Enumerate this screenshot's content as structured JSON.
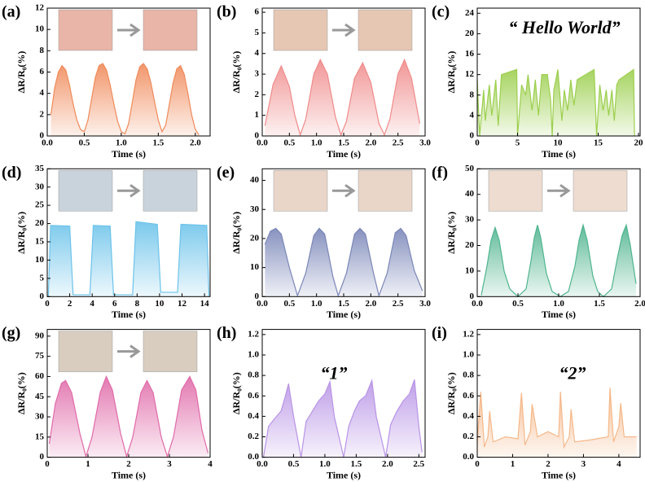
{
  "chart_data": [
    {
      "type": "area",
      "label": "(a)",
      "xlabel": "Time (s)",
      "ylabel": "ΔR/R₀(%)",
      "color": "#f08a5a",
      "xlim": [
        0,
        2.2
      ],
      "xticks": [
        {
          "value": 0,
          "label": "0.0"
        },
        0.5,
        {
          "value": 1,
          "label": "1.0"
        },
        1.5,
        {
          "value": 2,
          "label": "2.0"
        }
      ],
      "ylim": [
        0,
        12
      ],
      "yticks": [
        0,
        2,
        4,
        6,
        8,
        10,
        12
      ],
      "x": [
        0.05,
        0.1,
        0.15,
        0.2,
        0.25,
        0.3,
        0.35,
        0.4,
        0.45,
        0.5,
        0.55,
        0.6,
        0.65,
        0.7,
        0.75,
        0.8,
        0.85,
        0.9,
        0.95,
        1.0,
        1.05,
        1.1,
        1.15,
        1.2,
        1.25,
        1.3,
        1.35,
        1.4,
        1.45,
        1.5,
        1.55,
        1.6,
        1.65,
        1.7,
        1.75,
        1.8,
        1.85,
        1.9,
        1.95,
        2.0,
        2.05
      ],
      "values": [
        2.0,
        4.5,
        6.0,
        6.6,
        6.2,
        4.8,
        3.0,
        1.5,
        0.6,
        0.4,
        1.5,
        3.5,
        5.5,
        6.6,
        6.8,
        6.2,
        4.8,
        3.0,
        1.4,
        0.4,
        0.2,
        1.2,
        3.2,
        5.3,
        6.5,
        6.8,
        6.3,
        5.0,
        3.2,
        1.5,
        0.4,
        1.0,
        3.0,
        5.0,
        6.3,
        6.6,
        5.8,
        4.0,
        2.0,
        0.6,
        0.1
      ]
    },
    {
      "type": "area",
      "label": "(b)",
      "xlabel": "Time (s)",
      "ylabel": "ΔR/R₀(%)",
      "color": "#f08a8a",
      "xlim": [
        0,
        3
      ],
      "xticks": [
        {
          "value": 0,
          "label": "0.0"
        },
        0.5,
        {
          "value": 1,
          "label": "1.0"
        },
        1.5,
        {
          "value": 2,
          "label": "2.0"
        },
        2.5,
        {
          "value": 3,
          "label": "3.0"
        }
      ],
      "ylim": [
        0,
        6.2
      ],
      "yticks": [
        0,
        1,
        2,
        3,
        4,
        5,
        6
      ],
      "x": [
        0.05,
        0.2,
        0.35,
        0.5,
        0.6,
        0.7,
        0.8,
        0.95,
        1.07,
        1.2,
        1.35,
        1.45,
        1.55,
        1.7,
        1.85,
        2.0,
        2.15,
        2.25,
        2.35,
        2.5,
        2.62,
        2.75,
        2.9
      ],
      "values": [
        0.5,
        2.5,
        3.4,
        2.4,
        1.0,
        0.05,
        0.8,
        3.0,
        3.7,
        3.0,
        0.9,
        0.05,
        0.7,
        2.8,
        3.55,
        2.6,
        0.6,
        0.05,
        0.8,
        3.0,
        3.7,
        2.8,
        0.6
      ]
    },
    {
      "type": "area",
      "label": "(c)",
      "title": "“ Hello World”",
      "xlabel": "Time (s)",
      "ylabel": "ΔR/R₀(%)",
      "color": "#9ccf4e",
      "xlim": [
        0,
        20.2
      ],
      "xticks": [
        0,
        5,
        10,
        15,
        20
      ],
      "ylim": [
        0,
        25
      ],
      "yticks": [
        0,
        4,
        8,
        12,
        16,
        20,
        24
      ],
      "x": [
        0,
        0.3,
        0.8,
        1.0,
        1.5,
        1.8,
        2.3,
        2.6,
        3.0,
        4.9,
        5.0,
        5.5,
        6.0,
        6.3,
        6.8,
        7.2,
        7.6,
        8.0,
        8.7,
        9.1,
        9.3,
        9.5,
        10.0,
        10.5,
        10.8,
        11.2,
        11.6,
        12.0,
        12.4,
        14.5,
        14.8,
        15.2,
        15.6,
        16.0,
        16.3,
        16.7,
        17.0,
        17.3,
        17.6,
        19.4,
        19.5
      ],
      "values": [
        11,
        0,
        9,
        3,
        10,
        4,
        11,
        2,
        12,
        13,
        0,
        10,
        8,
        12,
        5,
        11,
        4,
        12,
        12,
        7,
        0,
        9,
        13,
        3,
        9,
        5,
        11,
        6,
        11,
        13,
        0,
        10,
        5,
        9,
        4,
        9,
        3,
        10,
        11,
        13,
        0
      ]
    },
    {
      "type": "area",
      "label": "(d)",
      "xlabel": "Time (s)",
      "ylabel": "ΔR/R₀(%)",
      "color": "#6cc3ea",
      "xlim": [
        0,
        14.5
      ],
      "xticks": [
        0,
        2,
        4,
        6,
        8,
        10,
        12,
        14
      ],
      "ylim": [
        0,
        35
      ],
      "yticks": [
        0,
        5,
        10,
        15,
        20,
        25,
        30,
        35
      ],
      "x": [
        0.1,
        0.3,
        2.0,
        2.3,
        3.8,
        4.1,
        5.6,
        5.9,
        7.6,
        7.9,
        9.8,
        10.1,
        11.6,
        11.9,
        14.2,
        14.4
      ],
      "values": [
        0,
        19.5,
        19.3,
        0.5,
        0.5,
        19.5,
        19.3,
        0.5,
        0.5,
        20.5,
        19.8,
        1.2,
        1.2,
        19.8,
        19.5,
        0
      ]
    },
    {
      "type": "area",
      "label": "(e)",
      "xlabel": "Time (s)",
      "ylabel": "ΔR/R₀(%)",
      "color": "#7a86b8",
      "xlim": [
        0,
        3
      ],
      "xticks": [
        {
          "value": 0,
          "label": "0.0"
        },
        0.5,
        {
          "value": 1,
          "label": "1.0"
        },
        1.5,
        {
          "value": 2,
          "label": "2.0"
        },
        2.5,
        {
          "value": 3,
          "label": "3.0"
        }
      ],
      "ylim": [
        0,
        44
      ],
      "yticks": [
        0,
        10,
        20,
        30,
        40
      ],
      "x": [
        0.05,
        0.15,
        0.25,
        0.35,
        0.5,
        0.65,
        0.8,
        0.95,
        1.05,
        1.15,
        1.3,
        1.4,
        1.55,
        1.7,
        1.8,
        1.9,
        2.05,
        2.15,
        2.3,
        2.45,
        2.55,
        2.65,
        2.8,
        2.95
      ],
      "values": [
        18,
        22.5,
        23.5,
        21.5,
        10,
        0.3,
        8,
        21,
        23.5,
        21.5,
        7,
        0.3,
        8,
        21.5,
        23.5,
        21.5,
        8,
        0.3,
        8,
        22,
        23.5,
        21,
        9,
        2
      ]
    },
    {
      "type": "area",
      "label": "(f)",
      "xlabel": "Time (s)",
      "ylabel": "ΔR/R₀(%)",
      "color": "#4fb48e",
      "xlim": [
        0,
        2
      ],
      "xticks": [
        {
          "value": 0,
          "label": "0.0"
        },
        0.5,
        {
          "value": 1,
          "label": "1.0"
        },
        1.5,
        {
          "value": 2,
          "label": "2.0"
        }
      ],
      "ylim": [
        0,
        50
      ],
      "yticks": [
        0,
        10,
        20,
        30,
        40,
        50
      ],
      "x": [
        0.05,
        0.12,
        0.17,
        0.22,
        0.27,
        0.33,
        0.4,
        0.5,
        0.6,
        0.66,
        0.7,
        0.74,
        0.78,
        0.85,
        0.92,
        1.02,
        1.12,
        1.2,
        1.25,
        1.3,
        1.35,
        1.42,
        1.48,
        1.55,
        1.65,
        1.72,
        1.78,
        1.83,
        1.88,
        1.95
      ],
      "values": [
        0.5,
        12,
        22,
        27,
        22,
        10,
        3,
        0,
        3,
        14,
        23,
        28,
        23,
        9,
        2,
        0,
        2,
        12,
        22,
        28,
        22,
        8,
        2,
        0,
        3,
        15,
        24,
        28,
        20,
        5
      ]
    },
    {
      "type": "area",
      "label": "(g)",
      "xlabel": "Time (s)",
      "ylabel": "ΔR/R₀(%)",
      "color": "#e06aa8",
      "xlim": [
        0,
        4
      ],
      "xticks": [
        0,
        1,
        2,
        3,
        4
      ],
      "ylim": [
        0,
        95
      ],
      "yticks": [
        0,
        15,
        30,
        45,
        60,
        75,
        90
      ],
      "x": [
        0.05,
        0.2,
        0.35,
        0.45,
        0.6,
        0.8,
        0.95,
        1.1,
        1.3,
        1.45,
        1.6,
        1.8,
        1.95,
        2.1,
        2.3,
        2.45,
        2.6,
        2.8,
        2.95,
        3.1,
        3.3,
        3.5,
        3.65,
        3.8,
        3.95
      ],
      "values": [
        10,
        40,
        55,
        57,
        48,
        18,
        0.5,
        15,
        48,
        60,
        50,
        18,
        0.5,
        15,
        48,
        57,
        48,
        15,
        0.5,
        15,
        50,
        60,
        50,
        20,
        3
      ]
    },
    {
      "type": "area",
      "label": "(h)",
      "title": "“1”",
      "xlabel": "Time (s)",
      "ylabel": "ΔR/R₀(%)",
      "color": "#b894e6",
      "xlim": [
        0,
        2.6
      ],
      "xticks": [
        {
          "value": 0,
          "label": "0.0"
        },
        0.5,
        {
          "value": 1,
          "label": "1.0"
        },
        1.5,
        {
          "value": 2,
          "label": "2.0"
        },
        2.5
      ],
      "ylim": [
        0,
        1.25
      ],
      "yticks": [
        {
          "value": 0,
          "label": "0.0"
        },
        0.2,
        0.4,
        0.6,
        0.8,
        {
          "value": 1,
          "label": "1.0"
        },
        1.2
      ],
      "x": [
        0.02,
        0.1,
        0.2,
        0.3,
        0.37,
        0.42,
        0.5,
        0.62,
        0.7,
        0.8,
        0.9,
        1.0,
        1.08,
        1.15,
        1.3,
        1.38,
        1.47,
        1.55,
        1.65,
        1.75,
        1.82,
        1.97,
        2.05,
        2.15,
        2.25,
        2.35,
        2.43,
        2.5,
        2.55
      ],
      "values": [
        0,
        0.3,
        0.38,
        0.45,
        0.6,
        0.72,
        0.4,
        0,
        0.35,
        0.45,
        0.55,
        0.62,
        0.74,
        0.4,
        0,
        0.3,
        0.45,
        0.55,
        0.6,
        0.75,
        0.4,
        0,
        0.32,
        0.45,
        0.55,
        0.62,
        0.76,
        0.3,
        0.05
      ]
    },
    {
      "type": "area",
      "label": "(i)",
      "title": "“2”",
      "xlabel": "Time (s)",
      "ylabel": "ΔR/R₀(%)",
      "color": "#f5b88a",
      "xlim": [
        0,
        4.6
      ],
      "xticks": [
        0,
        1,
        2,
        3,
        4
      ],
      "ylim": [
        0,
        1.25
      ],
      "yticks": [
        {
          "value": 0,
          "label": "0.0"
        },
        0.2,
        0.4,
        0.6,
        0.8,
        {
          "value": 1,
          "label": "1.0"
        },
        1.2
      ],
      "x": [
        0,
        0.1,
        0.2,
        0.3,
        0.35,
        0.45,
        0.8,
        1.15,
        1.25,
        1.35,
        1.5,
        1.55,
        1.7,
        2.0,
        2.3,
        2.35,
        2.45,
        2.6,
        2.65,
        2.75,
        3.2,
        3.7,
        3.75,
        3.85,
        4.0,
        4.05,
        4.15,
        4.5
      ],
      "values": [
        0.15,
        0.64,
        0.1,
        0.2,
        0.45,
        0.15,
        0.2,
        0.18,
        0.63,
        0.12,
        0.25,
        0.52,
        0.2,
        0.25,
        0.2,
        0.64,
        0.1,
        0.2,
        0.47,
        0.15,
        0.17,
        0.2,
        0.68,
        0.15,
        0.3,
        0.53,
        0.2,
        0.2
      ]
    }
  ]
}
